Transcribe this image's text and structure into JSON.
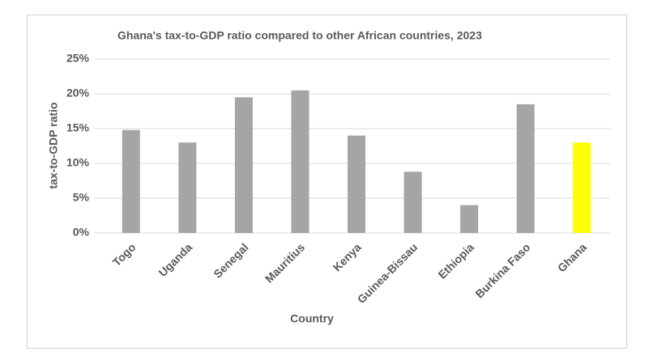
{
  "chart_data": {
    "type": "bar",
    "title": "Ghana's tax-to-GDP ratio compared to other African countries, 2023",
    "x_label": "Country",
    "y_label": "tax-to-GDP ratio",
    "categories": [
      "Togo",
      "Uganda",
      "Senegal",
      "Mauritius",
      "Kenya",
      "Guinea-Bissau",
      "Ethiopia",
      "Burkina Faso",
      "Ghana"
    ],
    "values": [
      14.8,
      13,
      19.5,
      20.5,
      14,
      8.8,
      4,
      18.5,
      13
    ],
    "colors": [
      "#a5a5a5",
      "#a5a5a5",
      "#a5a5a5",
      "#a5a5a5",
      "#a5a5a5",
      "#a5a5a5",
      "#a5a5a5",
      "#a5a5a5",
      "#ffff00"
    ],
    "ylim": [
      0,
      25
    ],
    "yticks": [
      {
        "value": 0,
        "label": "0%"
      },
      {
        "value": 5,
        "label": "5%"
      },
      {
        "value": 10,
        "label": "10%"
      },
      {
        "value": 15,
        "label": "15%"
      },
      {
        "value": 20,
        "label": "20%"
      },
      {
        "value": 25,
        "label": "25%"
      }
    ],
    "grid": true
  }
}
